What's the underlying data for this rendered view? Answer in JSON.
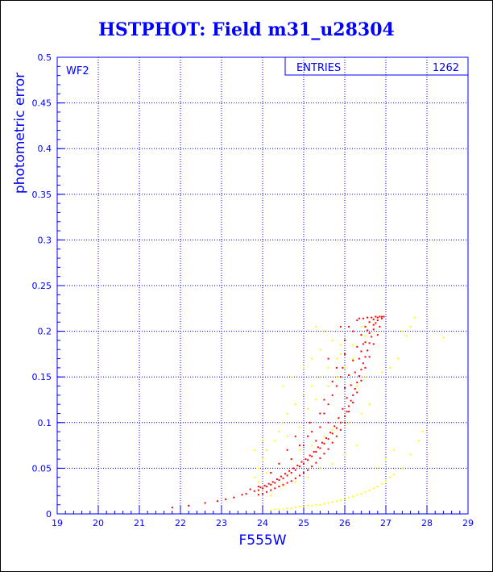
{
  "title": "HSTPHOT: Field m31_u28304",
  "chart_data": {
    "type": "scatter",
    "title": "HSTPHOT: Field m31_u28304",
    "xlabel": "F555W",
    "ylabel": "photometric error",
    "xlim": [
      19,
      29
    ],
    "ylim": [
      0,
      0.5
    ],
    "xticks": [
      "19",
      "20",
      "21",
      "22",
      "23",
      "24",
      "25",
      "26",
      "27",
      "28",
      "29"
    ],
    "yticks": [
      "0",
      "0.05",
      "0.1",
      "0.15",
      "0.2",
      "0.25",
      "0.3",
      "0.35",
      "0.4",
      "0.45",
      "0.5"
    ],
    "grid": true,
    "corner_label": "WF2",
    "stats_box": {
      "label": "ENTRIES",
      "value": "1262"
    },
    "series": [
      {
        "color": "#ff0000",
        "points": [
          [
            21.8,
            0.007
          ],
          [
            22.2,
            0.009
          ],
          [
            22.6,
            0.012
          ],
          [
            22.9,
            0.014
          ],
          [
            23.1,
            0.016
          ],
          [
            23.3,
            0.018
          ],
          [
            23.5,
            0.021
          ],
          [
            23.6,
            0.022
          ],
          [
            23.8,
            0.025
          ],
          [
            23.9,
            0.026
          ],
          [
            24.0,
            0.028
          ],
          [
            24.1,
            0.03
          ],
          [
            24.2,
            0.032
          ],
          [
            24.3,
            0.034
          ],
          [
            24.4,
            0.037
          ],
          [
            24.5,
            0.039
          ],
          [
            24.6,
            0.042
          ],
          [
            24.7,
            0.045
          ],
          [
            24.8,
            0.048
          ],
          [
            24.9,
            0.052
          ],
          [
            25.0,
            0.055
          ],
          [
            25.1,
            0.059
          ],
          [
            25.2,
            0.063
          ],
          [
            25.3,
            0.068
          ],
          [
            25.4,
            0.072
          ],
          [
            25.5,
            0.077
          ],
          [
            25.6,
            0.082
          ],
          [
            25.7,
            0.088
          ],
          [
            25.8,
            0.094
          ],
          [
            25.9,
            0.1
          ],
          [
            26.0,
            0.107
          ],
          [
            26.05,
            0.112
          ],
          [
            26.1,
            0.118
          ],
          [
            26.15,
            0.124
          ],
          [
            26.2,
            0.13
          ],
          [
            26.25,
            0.137
          ],
          [
            26.3,
            0.144
          ],
          [
            26.35,
            0.151
          ],
          [
            26.4,
            0.158
          ],
          [
            26.45,
            0.165
          ],
          [
            26.5,
            0.172
          ],
          [
            26.55,
            0.179
          ],
          [
            26.6,
            0.187
          ],
          [
            26.65,
            0.194
          ],
          [
            26.7,
            0.202
          ],
          [
            26.75,
            0.209
          ],
          [
            26.8,
            0.215
          ],
          [
            26.85,
            0.216
          ],
          [
            26.9,
            0.214
          ],
          [
            26.85,
            0.205
          ],
          [
            26.8,
            0.196
          ],
          [
            26.7,
            0.186
          ],
          [
            26.6,
            0.172
          ],
          [
            26.5,
            0.16
          ],
          [
            26.4,
            0.146
          ],
          [
            26.3,
            0.133
          ],
          [
            26.2,
            0.122
          ],
          [
            26.1,
            0.112
          ],
          [
            26.0,
            0.1
          ],
          [
            25.9,
            0.092
          ],
          [
            25.8,
            0.085
          ],
          [
            25.7,
            0.078
          ],
          [
            25.6,
            0.071
          ],
          [
            25.5,
            0.066
          ],
          [
            25.4,
            0.061
          ],
          [
            25.3,
            0.056
          ],
          [
            25.2,
            0.052
          ],
          [
            25.1,
            0.048
          ],
          [
            25.0,
            0.045
          ],
          [
            24.9,
            0.042
          ],
          [
            24.8,
            0.039
          ],
          [
            24.7,
            0.036
          ],
          [
            24.6,
            0.034
          ],
          [
            24.5,
            0.032
          ],
          [
            24.4,
            0.03
          ],
          [
            24.3,
            0.028
          ],
          [
            24.2,
            0.026
          ],
          [
            24.1,
            0.024
          ],
          [
            24.0,
            0.022
          ],
          [
            23.9,
            0.021
          ],
          [
            26.6,
            0.21
          ],
          [
            26.7,
            0.213
          ],
          [
            26.5,
            0.205
          ],
          [
            26.4,
            0.196
          ],
          [
            26.3,
            0.183
          ],
          [
            26.2,
            0.168
          ],
          [
            26.1,
            0.152
          ],
          [
            26.0,
            0.138
          ],
          [
            26.4,
            0.178
          ],
          [
            26.5,
            0.188
          ],
          [
            26.6,
            0.198
          ],
          [
            26.7,
            0.207
          ],
          [
            26.8,
            0.212
          ],
          [
            26.55,
            0.201
          ],
          [
            26.45,
            0.186
          ],
          [
            26.35,
            0.17
          ],
          [
            26.25,
            0.155
          ],
          [
            26.15,
            0.141
          ],
          [
            26.05,
            0.127
          ],
          [
            25.95,
            0.115
          ],
          [
            25.85,
            0.105
          ],
          [
            25.75,
            0.096
          ],
          [
            25.65,
            0.089
          ],
          [
            25.55,
            0.083
          ],
          [
            25.45,
            0.078
          ],
          [
            25.35,
            0.073
          ],
          [
            25.25,
            0.068
          ],
          [
            25.15,
            0.064
          ],
          [
            25.05,
            0.06
          ],
          [
            24.95,
            0.057
          ],
          [
            24.85,
            0.053
          ],
          [
            24.75,
            0.05
          ],
          [
            24.65,
            0.047
          ],
          [
            24.55,
            0.044
          ],
          [
            24.45,
            0.041
          ],
          [
            24.35,
            0.038
          ],
          [
            24.25,
            0.035
          ],
          [
            24.15,
            0.033
          ],
          [
            24.05,
            0.031
          ],
          [
            23.95,
            0.029
          ],
          [
            26.9,
            0.216
          ],
          [
            26.95,
            0.216
          ],
          [
            26.75,
            0.216
          ],
          [
            26.65,
            0.215
          ],
          [
            26.55,
            0.215
          ],
          [
            26.45,
            0.214
          ],
          [
            26.35,
            0.214
          ],
          [
            25.2,
            0.09
          ],
          [
            25.5,
            0.11
          ],
          [
            25.7,
            0.13
          ],
          [
            25.9,
            0.15
          ],
          [
            25.8,
            0.16
          ],
          [
            26.0,
            0.175
          ],
          [
            25.6,
            0.1
          ],
          [
            25.3,
            0.08
          ],
          [
            24.9,
            0.075
          ],
          [
            24.6,
            0.07
          ],
          [
            25.1,
            0.085
          ],
          [
            25.4,
            0.095
          ],
          [
            25.6,
            0.12
          ],
          [
            25.8,
            0.14
          ],
          [
            26.0,
            0.19
          ],
          [
            26.1,
            0.205
          ],
          [
            25.9,
            0.205
          ],
          [
            26.3,
            0.212
          ],
          [
            24.4,
            0.055
          ],
          [
            24.2,
            0.045
          ],
          [
            24.7,
            0.06
          ],
          [
            25.0,
            0.075
          ],
          [
            23.9,
            0.03
          ],
          [
            23.7,
            0.027
          ],
          [
            25.5,
            0.125
          ],
          [
            25.7,
            0.145
          ],
          [
            25.6,
            0.17
          ],
          [
            25.95,
            0.16
          ],
          [
            26.2,
            0.2
          ],
          [
            25.4,
            0.11
          ],
          [
            24.8,
            0.085
          ],
          [
            25.15,
            0.1
          ]
        ]
      },
      {
        "color": "#ffff00",
        "points": [
          [
            24.2,
            0.004
          ],
          [
            24.4,
            0.005
          ],
          [
            24.6,
            0.006
          ],
          [
            24.8,
            0.007
          ],
          [
            25.0,
            0.008
          ],
          [
            25.2,
            0.009
          ],
          [
            25.4,
            0.01
          ],
          [
            25.6,
            0.012
          ],
          [
            25.8,
            0.014
          ],
          [
            26.0,
            0.016
          ],
          [
            26.2,
            0.019
          ],
          [
            26.4,
            0.022
          ],
          [
            26.6,
            0.026
          ],
          [
            26.8,
            0.03
          ],
          [
            27.0,
            0.036
          ],
          [
            27.2,
            0.043
          ],
          [
            24.3,
            0.005
          ],
          [
            24.5,
            0.005
          ],
          [
            24.7,
            0.006
          ],
          [
            24.9,
            0.008
          ],
          [
            25.1,
            0.009
          ],
          [
            25.3,
            0.01
          ],
          [
            25.5,
            0.011
          ],
          [
            25.7,
            0.013
          ],
          [
            25.9,
            0.015
          ],
          [
            26.1,
            0.018
          ],
          [
            26.3,
            0.021
          ],
          [
            26.5,
            0.024
          ],
          [
            26.7,
            0.028
          ],
          [
            26.9,
            0.033
          ],
          [
            27.1,
            0.04
          ],
          [
            27.4,
            0.05
          ],
          [
            27.6,
            0.065
          ],
          [
            27.8,
            0.08
          ],
          [
            27.9,
            0.09
          ],
          [
            27.5,
            0.195
          ],
          [
            27.6,
            0.205
          ],
          [
            27.7,
            0.215
          ],
          [
            27.4,
            0.2
          ],
          [
            28.4,
            0.193
          ],
          [
            27.3,
            0.17
          ],
          [
            27.1,
            0.16
          ],
          [
            26.9,
            0.155
          ],
          [
            25.3,
            0.205
          ],
          [
            25.5,
            0.2
          ],
          [
            25.7,
            0.19
          ],
          [
            25.9,
            0.185
          ],
          [
            25.8,
            0.17
          ],
          [
            25.4,
            0.15
          ],
          [
            25.2,
            0.14
          ],
          [
            25.0,
            0.13
          ],
          [
            24.8,
            0.12
          ],
          [
            24.6,
            0.11
          ],
          [
            24.5,
            0.1
          ],
          [
            24.4,
            0.09
          ],
          [
            24.3,
            0.08
          ],
          [
            24.1,
            0.07
          ],
          [
            24.0,
            0.06
          ],
          [
            23.9,
            0.05
          ],
          [
            23.8,
            0.04
          ],
          [
            24.6,
            0.085
          ],
          [
            24.9,
            0.095
          ],
          [
            25.1,
            0.115
          ],
          [
            25.3,
            0.125
          ],
          [
            25.6,
            0.14
          ],
          [
            25.8,
            0.15
          ],
          [
            26.0,
            0.16
          ],
          [
            26.2,
            0.17
          ],
          [
            24.2,
            0.02
          ],
          [
            24.5,
            0.03
          ],
          [
            24.8,
            0.035
          ],
          [
            25.1,
            0.04
          ],
          [
            25.4,
            0.05
          ],
          [
            25.7,
            0.055
          ],
          [
            26.0,
            0.065
          ],
          [
            26.3,
            0.075
          ],
          [
            24.7,
            0.06
          ],
          [
            24.9,
            0.07
          ],
          [
            25.2,
            0.075
          ],
          [
            25.5,
            0.085
          ],
          [
            25.7,
            0.092
          ],
          [
            26.1,
            0.1
          ],
          [
            26.4,
            0.11
          ],
          [
            26.6,
            0.12
          ],
          [
            26.3,
            0.14
          ],
          [
            26.5,
            0.15
          ],
          [
            25.6,
            0.16
          ],
          [
            25.9,
            0.175
          ],
          [
            26.2,
            0.185
          ],
          [
            26.5,
            0.195
          ],
          [
            26.4,
            0.205
          ],
          [
            26.6,
            0.21
          ],
          [
            24.0,
            0.08
          ],
          [
            23.8,
            0.07
          ],
          [
            24.5,
            0.14
          ],
          [
            24.7,
            0.15
          ],
          [
            25.0,
            0.16
          ],
          [
            25.2,
            0.17
          ],
          [
            25.4,
            0.18
          ],
          [
            26.8,
            0.05
          ],
          [
            27.0,
            0.06
          ],
          [
            27.2,
            0.07
          ],
          [
            24.1,
            0.045
          ],
          [
            23.9,
            0.035
          ]
        ]
      }
    ]
  }
}
